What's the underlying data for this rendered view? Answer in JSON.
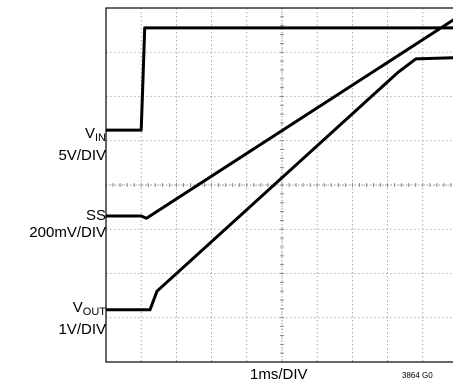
{
  "chart_data": {
    "type": "line",
    "title": "",
    "xlabel": "1ms/DIV",
    "x_divisions": 10,
    "y_divisions": 8,
    "xlim": [
      0,
      10
    ],
    "ylim": [
      0,
      8
    ],
    "grid": true,
    "figure_id": "3864 G0",
    "traces": [
      {
        "label_main": "V",
        "label_sub": "IN",
        "scale": "5V/DIV",
        "x": [
          0,
          1.0,
          1.05,
          1.1,
          10
        ],
        "y": [
          5.24,
          5.24,
          6.4,
          7.55,
          7.55
        ]
      },
      {
        "label_main": "SS",
        "label_sub": "",
        "scale": "200mV/DIV",
        "x": [
          0,
          1.0,
          1.15,
          10
        ],
        "y": [
          3.3,
          3.3,
          3.25,
          7.8
        ]
      },
      {
        "label_main": "V",
        "label_sub": "OUT",
        "scale": "1V/DIV",
        "x": [
          0,
          1.25,
          1.45,
          8.3,
          8.8,
          10
        ],
        "y": [
          1.18,
          1.18,
          1.6,
          6.55,
          6.85,
          6.88
        ]
      }
    ]
  }
}
